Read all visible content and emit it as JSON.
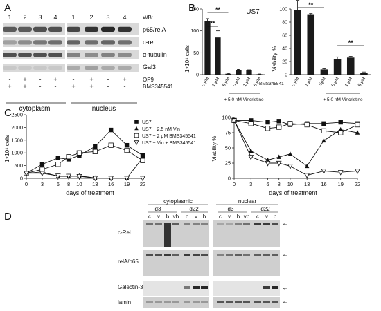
{
  "panelA": {
    "label": "A",
    "lanes": [
      "1",
      "2",
      "3",
      "4",
      "1",
      "2",
      "3",
      "4"
    ],
    "header": "WB:",
    "blots": [
      "p65/relA",
      "c-rel",
      "α-tubulin",
      "Gal3"
    ],
    "treatments": [
      {
        "name": "OP9",
        "marks": [
          "-",
          "+",
          "-",
          "+",
          "-",
          "+",
          "-",
          "+"
        ]
      },
      {
        "name": "BMS345541",
        "marks": [
          "+",
          "+",
          "-",
          "-",
          "+",
          "+",
          "-",
          "-"
        ]
      }
    ],
    "fractions": [
      "cytoplasm",
      "nucleus"
    ]
  },
  "panelB": {
    "label": "B",
    "title": "US7",
    "sig": "**",
    "drug_label": "BMS345541",
    "vin_label": "+ 5.0 nM Vincristine",
    "left_axis": "1×10⁴ cells",
    "right_axis": "Viability %",
    "left_ticks": [
      "0",
      "50",
      "100",
      "150"
    ],
    "right_ticks": [
      "0",
      "20",
      "40",
      "60",
      "80",
      "100"
    ]
  },
  "panelC": {
    "label": "C",
    "xlabel": "days of treatment",
    "left_ylabel": "1×10⁴ cells",
    "right_ylabel": "Viability %",
    "x_ticks": [
      "0",
      "3",
      "6",
      "8",
      "10",
      "13",
      "16",
      "19",
      "22"
    ],
    "left_ticks": [
      "0",
      "500",
      "1000",
      "1500",
      "2000",
      "2500"
    ],
    "right_ticks": [
      "0",
      "25",
      "50",
      "75",
      "100"
    ],
    "legend": [
      "US7",
      "US7 + 2.5 nM Vin",
      "US7 + 2 μM BMS345541",
      "US7 + Vin + BMS345541"
    ]
  },
  "panelD": {
    "label": "D",
    "groups": [
      "cytoplasmic",
      "nuclear"
    ],
    "timepoints": [
      "d3",
      "d22",
      "d3",
      "d22"
    ],
    "lanes_left": [
      "c",
      "v",
      "b",
      "vb",
      "c",
      "v",
      "b"
    ],
    "lanes_right": [
      "c",
      "v",
      "b",
      "vb",
      "c",
      "v",
      "b"
    ],
    "blots": [
      "c-Rel",
      "relA/p65",
      "Galectin-3",
      "lamin"
    ],
    "arrow": "←"
  },
  "chart_data": [
    {
      "type": "bar",
      "title": "US7",
      "ylabel": "1×10⁴ cells",
      "categories": [
        "0 μM",
        "1 μM",
        "5 μM",
        "0 μM",
        "1 μM",
        "5 μM"
      ],
      "values": [
        123,
        85,
        2,
        11,
        10,
        1
      ],
      "errors": [
        5,
        15,
        1,
        1,
        1,
        0.5
      ],
      "ylim": [
        0,
        150
      ]
    },
    {
      "type": "bar",
      "ylabel": "Viability %",
      "categories": [
        "0 μM",
        "1 μM",
        "5μM",
        "0 μM",
        "1 μM",
        "5 μM"
      ],
      "values": [
        98,
        92,
        8,
        24,
        26,
        3
      ],
      "errors": [
        15,
        1,
        1,
        3,
        2,
        1
      ],
      "ylim": [
        0,
        100
      ]
    },
    {
      "type": "line",
      "xlabel": "days of treatment",
      "ylabel": "1×10⁴ cells",
      "x": [
        0,
        3,
        6,
        8,
        10,
        13,
        16,
        19,
        22
      ],
      "ylim": [
        0,
        2500
      ],
      "series": [
        {
          "name": "US7",
          "values": [
            200,
            550,
            800,
            750,
            900,
            1250,
            1900,
            1300,
            900
          ]
        },
        {
          "name": "US7 + 2.5 nM Vin",
          "values": [
            200,
            250,
            80,
            80,
            100,
            20,
            10,
            10,
            800
          ]
        },
        {
          "name": "US7 + 2 μM BMS345541",
          "values": [
            200,
            350,
            550,
            850,
            1000,
            1050,
            1300,
            1100,
            700
          ]
        },
        {
          "name": "US7 + Vin + BMS345541",
          "values": [
            200,
            200,
            100,
            90,
            80,
            10,
            10,
            10,
            10
          ]
        }
      ]
    },
    {
      "type": "line",
      "xlabel": "days of treatment",
      "ylabel": "Viability %",
      "x": [
        0,
        3,
        6,
        8,
        10,
        13,
        16,
        19,
        22
      ],
      "ylim": [
        0,
        100
      ],
      "series": [
        {
          "name": "US7",
          "values": [
            95,
            95,
            92,
            94,
            88,
            90,
            90,
            92,
            90
          ]
        },
        {
          "name": "US7 + 2.5 nM Vin",
          "values": [
            95,
            45,
            30,
            35,
            40,
            20,
            62,
            80,
            75
          ]
        },
        {
          "name": "US7 + 2 μM BMS345541",
          "values": [
            95,
            90,
            82,
            84,
            90,
            88,
            78,
            75,
            88
          ]
        },
        {
          "name": "US7 + Vin + BMS345541",
          "values": [
            95,
            35,
            25,
            25,
            20,
            5,
            12,
            10,
            12
          ]
        }
      ]
    }
  ]
}
